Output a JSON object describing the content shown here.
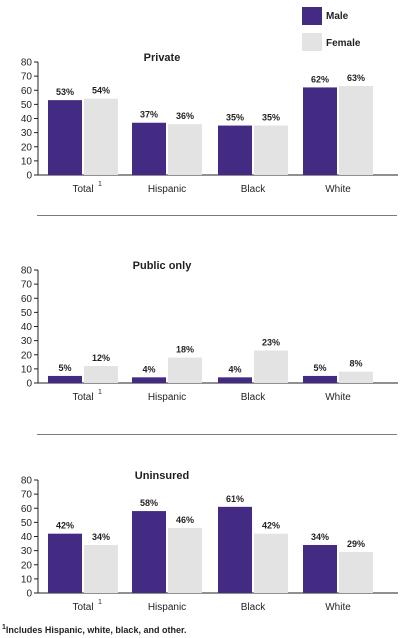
{
  "legend": [
    {
      "label": "Male",
      "color": "#432a83"
    },
    {
      "label": "Female",
      "color": "#e3e3e3"
    }
  ],
  "footnote": {
    "marker": "1",
    "text": "Includes Hispanic, white, black, and other."
  },
  "chart_data": [
    {
      "type": "bar",
      "title": "Private",
      "categories": [
        "Total",
        "Hispanic",
        "Black",
        "White"
      ],
      "category_footnotes": [
        "1",
        "",
        "",
        ""
      ],
      "ylim": [
        0,
        80
      ],
      "yticks": [
        0,
        10,
        20,
        30,
        40,
        50,
        60,
        70,
        80
      ],
      "series": [
        {
          "name": "Male",
          "color": "#432a83",
          "values": [
            53,
            37,
            35,
            62
          ],
          "labels": [
            "53%",
            "37%",
            "35%",
            "62%"
          ]
        },
        {
          "name": "Female",
          "color": "#e3e3e3",
          "values": [
            54,
            36,
            35,
            63
          ],
          "labels": [
            "54%",
            "36%",
            "35%",
            "63%"
          ]
        }
      ]
    },
    {
      "type": "bar",
      "title": "Public only",
      "categories": [
        "Total",
        "Hispanic",
        "Black",
        "White"
      ],
      "category_footnotes": [
        "1",
        "",
        "",
        ""
      ],
      "ylim": [
        0,
        80
      ],
      "yticks": [
        0,
        10,
        20,
        30,
        40,
        50,
        60,
        70,
        80
      ],
      "series": [
        {
          "name": "Male",
          "color": "#432a83",
          "values": [
            5,
            4,
            4,
            5
          ],
          "labels": [
            "5%",
            "4%",
            "4%",
            "5%"
          ]
        },
        {
          "name": "Female",
          "color": "#e3e3e3",
          "values": [
            12,
            18,
            23,
            8
          ],
          "labels": [
            "12%",
            "18%",
            "23%",
            "8%"
          ]
        }
      ]
    },
    {
      "type": "bar",
      "title": "Uninsured",
      "categories": [
        "Total",
        "Hispanic",
        "Black",
        "White"
      ],
      "category_footnotes": [
        "1",
        "",
        "",
        ""
      ],
      "ylim": [
        0,
        80
      ],
      "yticks": [
        0,
        10,
        20,
        30,
        40,
        50,
        60,
        70,
        80
      ],
      "series": [
        {
          "name": "Male",
          "color": "#432a83",
          "values": [
            42,
            58,
            61,
            34
          ],
          "labels": [
            "42%",
            "58%",
            "61%",
            "34%"
          ]
        },
        {
          "name": "Female",
          "color": "#e3e3e3",
          "values": [
            34,
            46,
            42,
            29
          ],
          "labels": [
            "34%",
            "46%",
            "42%",
            "29%"
          ]
        }
      ]
    }
  ]
}
